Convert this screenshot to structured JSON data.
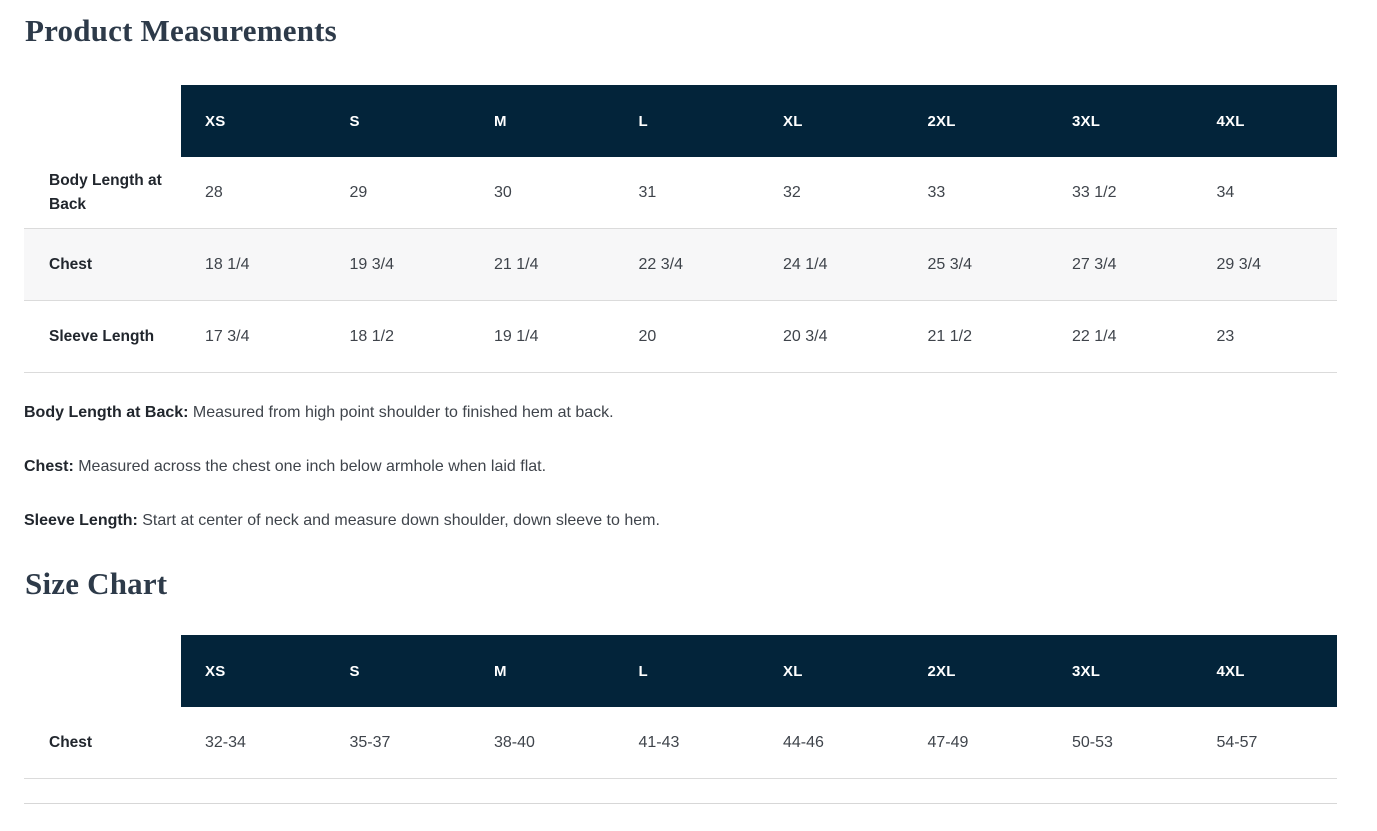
{
  "measurements": {
    "title": "Product Measurements",
    "columns": [
      "XS",
      "S",
      "M",
      "L",
      "XL",
      "2XL",
      "3XL",
      "4XL"
    ],
    "rows": [
      {
        "label": "Body Length at Back",
        "values": [
          "28",
          "29",
          "30",
          "31",
          "32",
          "33",
          "33 1/2",
          "34"
        ]
      },
      {
        "label": "Chest",
        "values": [
          "18 1/4",
          "19 3/4",
          "21 1/4",
          "22 3/4",
          "24 1/4",
          "25 3/4",
          "27 3/4",
          "29 3/4"
        ]
      },
      {
        "label": "Sleeve Length",
        "values": [
          "17 3/4",
          "18 1/2",
          "19 1/4",
          "20",
          "20 3/4",
          "21 1/2",
          "22 1/4",
          "23"
        ]
      }
    ],
    "notes": [
      {
        "term": "Body Length at Back:",
        "definition": "Measured from high point shoulder to finished hem at back."
      },
      {
        "term": "Chest:",
        "definition": "Measured across the chest one inch below armhole when laid flat."
      },
      {
        "term": "Sleeve Length:",
        "definition": "Start at center of neck and measure down shoulder, down sleeve to hem."
      }
    ]
  },
  "size_chart": {
    "title": "Size Chart",
    "columns": [
      "XS",
      "S",
      "M",
      "L",
      "XL",
      "2XL",
      "3XL",
      "4XL"
    ],
    "rows": [
      {
        "label": "Chest",
        "values": [
          "32-34",
          "35-37",
          "38-40",
          "41-43",
          "44-46",
          "47-49",
          "50-53",
          "54-57"
        ]
      }
    ]
  },
  "colors": {
    "header_bg": "#03243a",
    "header_text": "#ffffff",
    "stripe_bg": "#f7f7f8",
    "row_border": "#dbdbdb",
    "title_text": "#2d3a49",
    "body_text": "#3f444b"
  }
}
